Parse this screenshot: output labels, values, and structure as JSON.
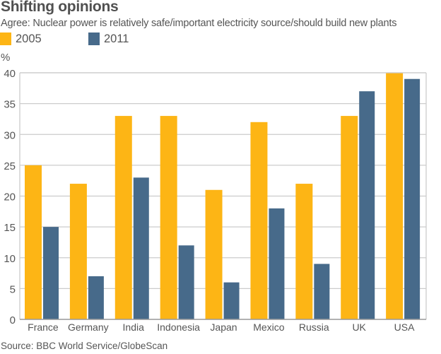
{
  "header": {
    "title": "Shifting opinions",
    "subtitle": "Agree: Nuclear power is relatively safe/important electricity source/should build new plants"
  },
  "footer": {
    "source": "Source: BBC World Service/GlobeScan"
  },
  "colors": {
    "series_2005": "#FDB515",
    "series_2011": "#476A8A",
    "grid": "#CCCCCC",
    "axis": "#999999"
  },
  "chart_data": {
    "type": "bar",
    "title": "Shifting opinions",
    "subtitle": "Agree: Nuclear power is relatively safe/important electricity source/should build new plants",
    "xlabel": "",
    "ylabel": "%",
    "ylim": [
      0,
      40
    ],
    "yticks": [
      0,
      5,
      10,
      15,
      20,
      25,
      30,
      35,
      40
    ],
    "grid": true,
    "legend_position": "top-left",
    "categories": [
      "France",
      "Germany",
      "India",
      "Indonesia",
      "Japan",
      "Mexico",
      "Russia",
      "UK",
      "USA"
    ],
    "series": [
      {
        "name": "2005",
        "values": [
          25,
          22,
          33,
          33,
          21,
          32,
          22,
          33,
          40
        ]
      },
      {
        "name": "2011",
        "values": [
          15,
          7,
          23,
          12,
          6,
          18,
          9,
          37,
          39
        ]
      }
    ]
  }
}
